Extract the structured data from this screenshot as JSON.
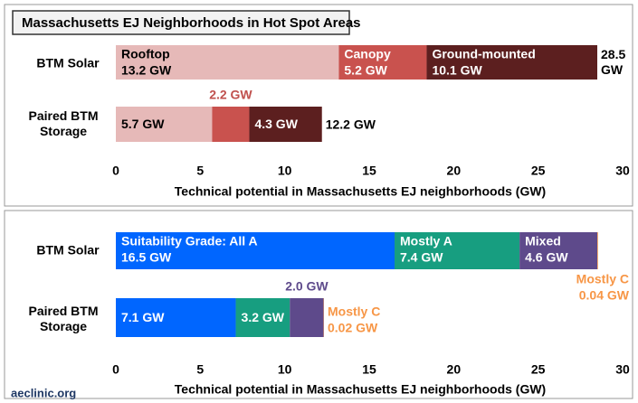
{
  "chart_data": [
    {
      "type": "bar",
      "orientation": "horizontal",
      "stacked": true,
      "title": "Massachusetts EJ Neighborhoods in Hot Spot Areas",
      "categories": [
        "BTM Solar",
        "Paired BTM Storage"
      ],
      "series": [
        {
          "name": "Rooftop",
          "color": "#e6b9b8",
          "values": [
            13.2,
            5.7
          ],
          "value_labels": [
            "13.2 GW",
            "5.7 GW"
          ]
        },
        {
          "name": "Canopy",
          "color": "#c9524e",
          "values": [
            5.2,
            2.2
          ],
          "value_labels": [
            "5.2 GW",
            "2.2 GW"
          ]
        },
        {
          "name": "Ground-mounted",
          "color": "#5c1f1f",
          "values": [
            10.1,
            4.3
          ],
          "value_labels": [
            "10.1 GW",
            "4.3 GW"
          ]
        }
      ],
      "total_labels": [
        "28.5 GW",
        "12.2 GW"
      ],
      "xlabel": "Technical potential in Massachusetts EJ neighborhoods (GW)",
      "xlim": [
        0,
        30
      ],
      "xticks": [
        0,
        5,
        10,
        15,
        20,
        25,
        30
      ]
    },
    {
      "type": "bar",
      "orientation": "horizontal",
      "stacked": true,
      "categories": [
        "BTM Solar",
        "Paired BTM Storage"
      ],
      "series": [
        {
          "name": "Suitability Grade: All A",
          "color": "#0066ff",
          "values": [
            16.5,
            7.1
          ],
          "value_labels": [
            "16.5 GW",
            "7.1 GW"
          ]
        },
        {
          "name": "Mostly A",
          "color": "#179e80",
          "values": [
            7.4,
            3.2
          ],
          "value_labels": [
            "7.4 GW",
            "3.2 GW"
          ]
        },
        {
          "name": "Mixed",
          "color": "#5e4a8b",
          "values": [
            4.6,
            2.0
          ],
          "value_labels": [
            "4.6 GW",
            "2.0 GW"
          ]
        },
        {
          "name": "Mostly C",
          "color": "#f79646",
          "values": [
            0.04,
            0.02
          ],
          "value_labels": [
            "0.04 GW",
            "0.02 GW"
          ]
        }
      ],
      "xlabel": "Technical potential in Massachusetts EJ neighborhoods (GW)",
      "xlim": [
        0,
        30
      ],
      "xticks": [
        0,
        5,
        10,
        15,
        20,
        25,
        30
      ]
    }
  ],
  "source": "aeclinic.org"
}
